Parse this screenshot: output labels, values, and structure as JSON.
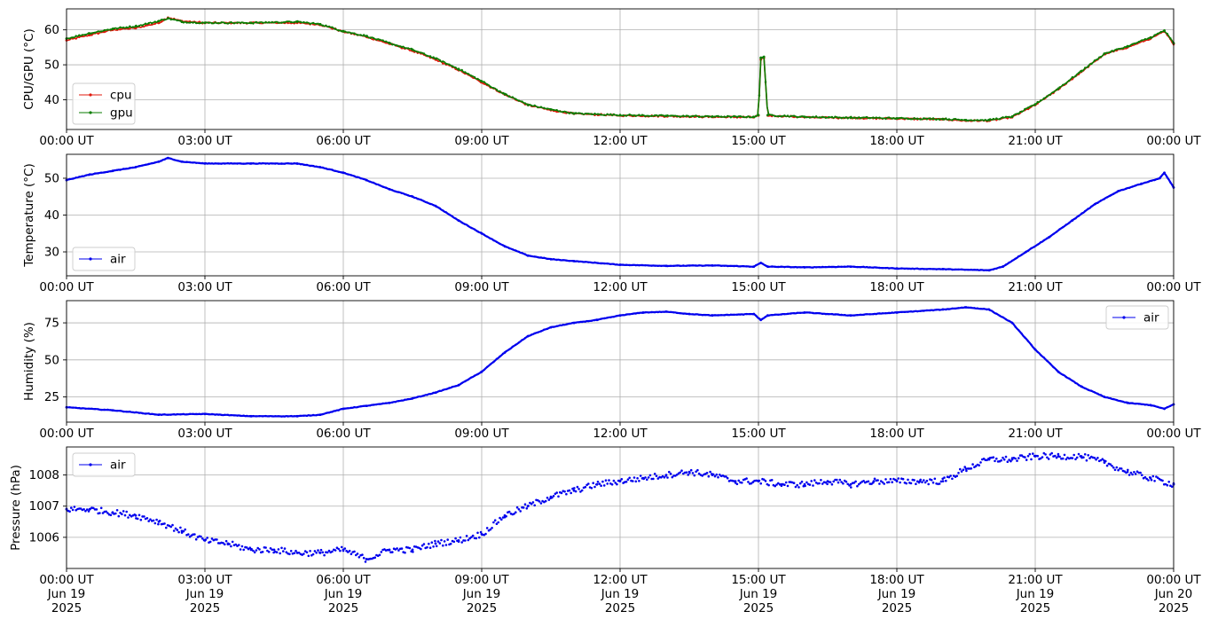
{
  "colors": {
    "cpu": "#e0190d",
    "gpu": "#0a7d00",
    "air": "#0000ee",
    "grid": "#b0b0b0"
  },
  "chart_data": [
    {
      "type": "line",
      "ylabel": "CPU/GPU (°C)",
      "ylim": [
        31.5,
        66
      ],
      "yticks": [
        40,
        50,
        60
      ],
      "grid": true,
      "legend": "lower-left",
      "x_tick_labels": [
        "00:00 UT",
        "03:00 UT",
        "06:00 UT",
        "09:00 UT",
        "12:00 UT",
        "15:00 UT",
        "18:00 UT",
        "21:00 UT",
        "00:00 UT"
      ],
      "x_hours": [
        0,
        0.5,
        1,
        1.5,
        2,
        2.2,
        2.5,
        3,
        4,
        5,
        5.5,
        6,
        6.5,
        7,
        7.5,
        8,
        8.5,
        9,
        9.5,
        10,
        10.5,
        11,
        12,
        13,
        14,
        14.9,
        15.0,
        15.05,
        15.12,
        15.2,
        16,
        17,
        18,
        19,
        19.5,
        20,
        20.5,
        21,
        21.5,
        22,
        22.5,
        23,
        23.5,
        23.8,
        24
      ],
      "series": [
        {
          "name": "cpu",
          "color_key": "cpu",
          "values": [
            57,
            58.5,
            60,
            60.5,
            62,
            63.5,
            62.5,
            62,
            62,
            62,
            61.5,
            59.5,
            58,
            56,
            54,
            51.5,
            48.5,
            45,
            41.5,
            38.5,
            37,
            36,
            35.5,
            35.3,
            35.1,
            35,
            35.5,
            51.5,
            52,
            35.5,
            35,
            34.8,
            34.6,
            34.4,
            34,
            34,
            35,
            38.5,
            43,
            48,
            53,
            55,
            57.5,
            59.5,
            56
          ]
        },
        {
          "name": "gpu",
          "color_key": "gpu",
          "values": [
            57.5,
            59,
            60.3,
            61,
            62.5,
            63.3,
            62.3,
            62,
            62,
            62.3,
            61.6,
            59.6,
            58.2,
            56.2,
            54.3,
            51.8,
            48.8,
            45.3,
            41.6,
            38.6,
            37.2,
            36.1,
            35.6,
            35.4,
            35.2,
            35.1,
            35.6,
            52,
            52.3,
            35.6,
            35.1,
            34.9,
            34.7,
            34.5,
            34.2,
            34.2,
            35.2,
            38.7,
            43.2,
            48.2,
            53.2,
            55.3,
            57.8,
            59.8,
            56.2
          ]
        }
      ]
    },
    {
      "type": "line",
      "ylabel": "Temperature (°C)",
      "ylim": [
        23.5,
        56.5
      ],
      "yticks": [
        30,
        40,
        50
      ],
      "grid": true,
      "legend": "lower-left",
      "x_tick_labels": [
        "00:00 UT",
        "03:00 UT",
        "06:00 UT",
        "09:00 UT",
        "12:00 UT",
        "15:00 UT",
        "18:00 UT",
        "21:00 UT",
        "00:00 UT"
      ],
      "x_hours": [
        0,
        0.5,
        1,
        1.5,
        2,
        2.2,
        2.5,
        3,
        4,
        5,
        5.5,
        6,
        6.5,
        7,
        7.5,
        8,
        8.5,
        9,
        9.5,
        10,
        10.5,
        11,
        12,
        13,
        14,
        14.9,
        15.05,
        15.2,
        16,
        17,
        18,
        19,
        20,
        20.3,
        20.8,
        21.3,
        21.8,
        22.3,
        22.8,
        23.3,
        23.7,
        23.8,
        24
      ],
      "series": [
        {
          "name": "air",
          "color_key": "air",
          "values": [
            49.5,
            51,
            52,
            53,
            54.5,
            55.5,
            54.5,
            54,
            54,
            54,
            53,
            51.5,
            49.5,
            47,
            45,
            42.5,
            38.5,
            35,
            31.5,
            29,
            28,
            27.5,
            26.5,
            26.2,
            26.3,
            26,
            27,
            26,
            25.8,
            26,
            25.5,
            25.3,
            25,
            26,
            30,
            34,
            38.5,
            43,
            46.5,
            48.5,
            50,
            51.5,
            47.5
          ]
        }
      ]
    },
    {
      "type": "line",
      "ylabel": "Humidity (%)",
      "ylim": [
        8,
        90
      ],
      "yticks": [
        25,
        50,
        75
      ],
      "grid": true,
      "legend": "upper-right",
      "x_tick_labels": [
        "00:00 UT",
        "03:00 UT",
        "06:00 UT",
        "09:00 UT",
        "12:00 UT",
        "15:00 UT",
        "18:00 UT",
        "21:00 UT",
        "00:00 UT"
      ],
      "x_hours": [
        0,
        1,
        2,
        3,
        4,
        5,
        5.5,
        6,
        6.5,
        7,
        7.5,
        8,
        8.5,
        9,
        9.5,
        10,
        10.5,
        11,
        11.5,
        12,
        12.5,
        13,
        13.5,
        14,
        14.9,
        15.05,
        15.2,
        16,
        17,
        18,
        19,
        19.5,
        20,
        20.5,
        21,
        21.5,
        22,
        22.5,
        23,
        23.5,
        23.8,
        24
      ],
      "series": [
        {
          "name": "air",
          "color_key": "air",
          "values": [
            18,
            16,
            13,
            13.5,
            12,
            12,
            13,
            17,
            19,
            21,
            24,
            28,
            33,
            42,
            55,
            66,
            72,
            75,
            77,
            80,
            82,
            82.5,
            81,
            80,
            81,
            77,
            80,
            82,
            80,
            82,
            84,
            85.5,
            84,
            75,
            57,
            42,
            32,
            25,
            21,
            19.5,
            17,
            20
          ]
        }
      ]
    },
    {
      "type": "scatter",
      "ylabel": "Pressure (hPa)",
      "ylim": [
        1005.0,
        1008.9
      ],
      "yticks": [
        1006,
        1007,
        1008
      ],
      "grid": true,
      "legend": "upper-left",
      "x_tick_labels": [
        "00:00 UT\nJun 19\n2025",
        "03:00 UT\nJun 19\n2025",
        "06:00 UT\nJun 19\n2025",
        "09:00 UT\nJun 19\n2025",
        "12:00 UT\nJun 19\n2025",
        "15:00 UT\nJun 19\n2025",
        "18:00 UT\nJun 19\n2025",
        "21:00 UT\nJun 19\n2025",
        "00:00 UT\nJun 20\n2025"
      ],
      "x_hours": [
        0,
        0.5,
        1,
        1.5,
        2,
        2.5,
        3,
        3.5,
        4,
        4.5,
        5,
        5.5,
        6,
        6.5,
        7,
        7.5,
        8,
        8.5,
        9,
        9.5,
        10,
        10.5,
        11,
        11.5,
        12,
        12.5,
        13,
        13.5,
        14,
        14.5,
        15,
        15.5,
        16,
        16.5,
        17,
        17.5,
        18,
        18.5,
        19,
        19.5,
        20,
        20.5,
        21,
        21.5,
        22,
        22.5,
        23,
        23.5,
        24
      ],
      "series": [
        {
          "name": "air",
          "color_key": "air",
          "values": [
            1006.9,
            1006.9,
            1006.8,
            1006.7,
            1006.5,
            1006.2,
            1005.9,
            1005.8,
            1005.6,
            1005.6,
            1005.5,
            1005.5,
            1005.6,
            1005.3,
            1005.6,
            1005.6,
            1005.8,
            1005.9,
            1006.1,
            1006.7,
            1007.0,
            1007.3,
            1007.5,
            1007.7,
            1007.8,
            1007.9,
            1008.0,
            1008.1,
            1008.0,
            1007.8,
            1007.8,
            1007.7,
            1007.7,
            1007.8,
            1007.7,
            1007.8,
            1007.8,
            1007.8,
            1007.8,
            1008.2,
            1008.5,
            1008.5,
            1008.6,
            1008.6,
            1008.6,
            1008.4,
            1008.1,
            1007.9,
            1007.7
          ]
        }
      ]
    }
  ]
}
